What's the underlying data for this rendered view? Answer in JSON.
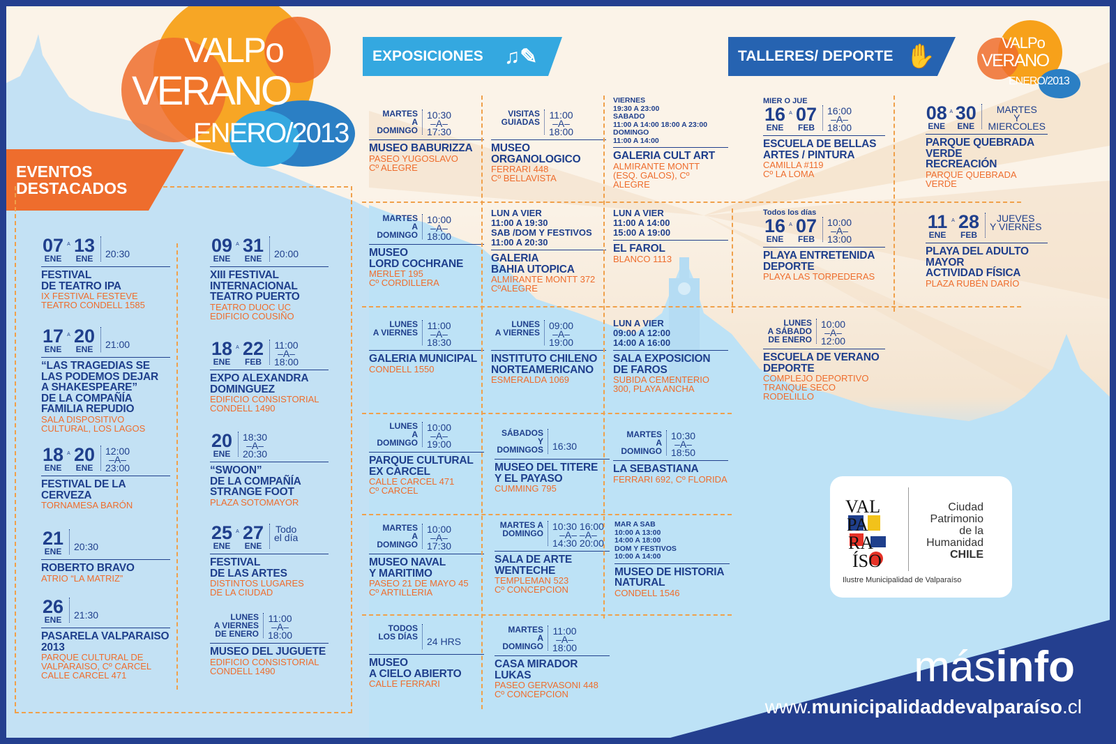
{
  "logo": {
    "line1": "VALPo",
    "line2": "VERANO",
    "line3": "ENERO/2013"
  },
  "sections": {
    "destacados": "EVENTOS\nDESTACADOS",
    "exposiciones": "EXPOSICIONES",
    "talleres": "TALLERES/ DEPORTE"
  },
  "destacados_left": [
    {
      "d1": "07",
      "m1": "ENE",
      "d2": "13",
      "m2": "ENE",
      "time": "20:30",
      "title": "FESTIVAL\nDE TEATRO IPA",
      "sub": "IX FESTIVAL FESTEVE\nTEATRO CONDELL 1585"
    },
    {
      "d1": "17",
      "m1": "ENE",
      "d2": "20",
      "m2": "ENE",
      "time": "21:00",
      "title": "“LAS TRAGEDIAS SE\nLAS PODEMOS DEJAR\nA SHAKESPEARE”\nDE LA COMPAÑÍA\nFAMILIA REPUDIO",
      "sub": "SALA DISPOSITIVO\nCULTURAL, LOS LAGOS"
    },
    {
      "d1": "18",
      "m1": "ENE",
      "d2": "20",
      "m2": "ENE",
      "time": "12:00\n–A–\n23:00",
      "title": "FESTIVAL DE LA\nCERVEZA",
      "sub": "TORNAMESA BARÓN"
    },
    {
      "d1": "21",
      "m1": "ENE",
      "d2": "",
      "m2": "",
      "time": "20:30",
      "title": "ROBERTO BRAVO",
      "sub": "ATRIO “LA MATRIZ”"
    },
    {
      "d1": "26",
      "m1": "ENE",
      "d2": "",
      "m2": "",
      "time": "21:30",
      "title": "PASARELA VALPARAISO\n2013",
      "sub": "PARQUE CULTURAL DE\nVALPARAISO, Cº CARCEL\nCALLE CARCEL 471"
    }
  ],
  "destacados_right": [
    {
      "d1": "09",
      "m1": "ENE",
      "d2": "31",
      "m2": "ENE",
      "time": "20:00",
      "title": "XIII FESTIVAL\nINTERNACIONAL\nTEATRO PUERTO",
      "sub": "TEATRO DUOC UC\nEDIFICIO COUSIÑO"
    },
    {
      "d1": "18",
      "m1": "ENE",
      "d2": "22",
      "m2": "FEB",
      "time": "11:00\n–A–\n18:00",
      "title": "EXPO ALEXANDRA\nDOMINGUEZ",
      "sub": "EDIFICIO CONSISTORIAL\nCONDELL 1490"
    },
    {
      "d1": "20",
      "m1": "ENE",
      "d2": "",
      "m2": "",
      "time": "18:30\n–A–\n20:30",
      "title": "“SWOON”\nDE LA COMPAÑÍA\nSTRANGE FOOT",
      "sub": "PLAZA SOTOMAYOR"
    },
    {
      "d1": "25",
      "m1": "ENE",
      "d2": "27",
      "m2": "ENE",
      "time": "Todo\nel día",
      "title": "FESTIVAL\nDE LAS ARTES",
      "sub": "DISTINTOS LUGARES\nDE LA CIUDAD"
    },
    {
      "d1": "",
      "m1": "",
      "d2": "",
      "m2": "",
      "sch": "LUNES\nA VIERNES\nDE ENERO",
      "time": "11:00\n–A–\n18:00",
      "title": "MUSEO DEL JUGUETE",
      "sub": "EDIFICIO CONSISTORIAL\nCONDELL 1490"
    }
  ],
  "expos": [
    {
      "sch": "MARTES\nA DOMINGO",
      "time": "10:30\n–A–\n17:30",
      "title": "MUSEO BABURIZZA",
      "sub": "PASEO YUGOSLAVO\nCº ALEGRE"
    },
    {
      "sch": "VISITAS\nGUIADAS",
      "time": "11:00\n–A–\n18:00",
      "title": "MUSEO\nORGANOLOGICO",
      "sub": "FERRARI 448\nCº BELLAVISTA"
    },
    {
      "sch": "",
      "time": "",
      "small": "VIERNES\n19:30 A 23:00\nSABADO\n11:00 A 14:00   18:00 A 23:00\nDOMINGO\n11:00 A 14:00",
      "title": "GALERIA CULT ART",
      "sub": "ALMIRANTE MONTT\n(ESQ. GALOS), Cº ALEGRE"
    },
    {
      "sch": "MARTES\nA DOMINGO",
      "time": "10:00\n–A–\n18:00",
      "title": "MUSEO\nLORD COCHRANE",
      "sub": "MERLET 195\nCº CORDILLERA"
    },
    {
      "sch": "",
      "time": "",
      "small2": "LUN A VIER\n11:00 A 19:30\nSAB /DOM Y FESTIVOS\n11:00 A 20:30",
      "title": "GALERIA\nBAHIA UTOPICA",
      "sub": "ALMIRANTE MONTT 372\nCºALEGRE"
    },
    {
      "sch": "",
      "time": "",
      "small2": "LUN A VIER\n11:00 A 14:00\n15:00 A 19:00",
      "title": "EL FAROL",
      "sub": "BLANCO 1113"
    },
    {
      "sch": "LUNES\nA VIERNES",
      "time": "11:00\n–A–\n18:30",
      "title": "GALERIA MUNICIPAL",
      "sub": "CONDELL 1550"
    },
    {
      "sch": "LUNES\nA VIERNES",
      "time": "09:00\n–A–\n19:00",
      "title": "INSTITUTO CHILENO\nNORTEAMERICANO",
      "sub": "ESMERALDA 1069"
    },
    {
      "sch": "",
      "time": "",
      "small2": "LUN A VIER\n09:00 A 12:00\n14:00 A 16:00",
      "title": "SALA EXPOSICION\nDE FAROS",
      "sub": "SUBIDA CEMENTERIO\n300, PLAYA ANCHA"
    },
    {
      "sch": "LUNES\nA DOMINGO",
      "time": "10:00\n–A–\n19:00",
      "title": "PARQUE CULTURAL\nEX CARCEL",
      "sub": "CALLE CARCEL 471\nCº CARCEL"
    },
    {
      "sch": "SÁBADOS\nY DOMINGOS",
      "time": "16:30",
      "title": "MUSEO DEL TITERE\nY EL PAYASO",
      "sub": "CUMMING 795"
    },
    {
      "sch": "MARTES\nA DOMINGO",
      "time": "10:30\n–A–\n18:50",
      "title": "LA SEBASTIANA",
      "sub": "FERRARI 692, Cº FLORIDA"
    },
    {
      "sch": "MARTES\nA DOMINGO",
      "time": "10:00\n–A–\n17:30",
      "title": "MUSEO NAVAL\nY MARITIMO",
      "sub": "PASEO 21 DE MAYO 45\nCº ARTILLERIA"
    },
    {
      "sch": "MARTES A\nDOMINGO",
      "time": "10:30  16:00\n–A–    –A–\n14:30  20:00",
      "title": "SALA DE ARTE\nWENTECHE",
      "sub": "TEMPLEMAN 523\nCº CONCEPCION"
    },
    {
      "sch": "",
      "time": "",
      "small": "MAR A SAB\n10:00 A 13:00\n14:00 A 18:00\nDOM Y FESTIVOS\n10:00 A 14:00",
      "title": "MUSEO DE HISTORIA\nNATURAL",
      "sub": "CONDELL 1546"
    },
    {
      "sch": "TODOS\nLOS DÍAS",
      "time": "24 HRS",
      "title": "MUSEO\nA CIELO ABIERTO",
      "sub": "CALLE FERRARI"
    },
    {
      "sch": "MARTES\nA DOMINGO",
      "time": "11:00\n–A–\n18:00",
      "title": "CASA MIRADOR LUKAS",
      "sub": "PASEO GERVASONI 448\nCº CONCEPCION"
    }
  ],
  "talleres": [
    {
      "pre": "MIER O JUE",
      "d1": "16",
      "m1": "ENE",
      "d2": "07",
      "m2": "FEB",
      "time": "16:00\n–A–\n18:00",
      "title": "ESCUELA DE BELLAS\nARTES / PINTURA",
      "sub": "CAMILLA #119\nCº LA LOMA"
    },
    {
      "pre": "",
      "d1": "08",
      "m1": "ENE",
      "d2": "30",
      "m2": "ENE",
      "time": "MARTES\nY MIERCOLES",
      "title": "PARQUE QUEBRADA\nVERDE\nRECREACIÓN",
      "sub": "PARQUE QUEBRADA VERDE"
    },
    {
      "pre": "Todos los días",
      "d1": "16",
      "m1": "ENE",
      "d2": "07",
      "m2": "FEB",
      "time": "10:00\n–A–\n13:00",
      "title": "PLAYA ENTRETENIDA\nDEPORTE",
      "sub": "PLAYA LAS TORPEDERAS"
    },
    {
      "pre": "",
      "d1": "11",
      "m1": "ENE",
      "d2": "28",
      "m2": "FEB",
      "time": "JUEVES\nY VIERNES",
      "title": "PLAYA DEL ADULTO\nMAYOR\nACTIVIDAD FÍSICA",
      "sub": "PLAZA RUBÉN DARÍO"
    },
    {
      "pre": "",
      "sch": "LUNES\nA SÁBADO\nDE ENERO",
      "time": "10:00\n–A–\n12:00",
      "title": "ESCUELA DE VERANO\nDEPORTE",
      "sub": "COMPLEJO DEPORTIVO\nTRANQUE SECO\nRODELILLO"
    }
  ],
  "municipal": {
    "city_line1": "Ciudad",
    "city_line2": "Patrimonio",
    "city_line3": "de la",
    "city_line4": "Humanidad",
    "country": "CHILE",
    "footer": "Ilustre Municipalidad de Valparaíso",
    "logo_letters": "VAL PA RA Í SO"
  },
  "masinfo": {
    "mas": "más",
    "info": "info",
    "url_pre": "www.",
    "url_bold": "municipalidaddevalparaíso",
    "url_post": ".cl"
  },
  "colors": {
    "navy": "#1f3f8c",
    "orange": "#ee6d2d",
    "lightblue": "#bde2f6",
    "dark": "#243f8f",
    "exp_banner": "#34a8e0"
  }
}
